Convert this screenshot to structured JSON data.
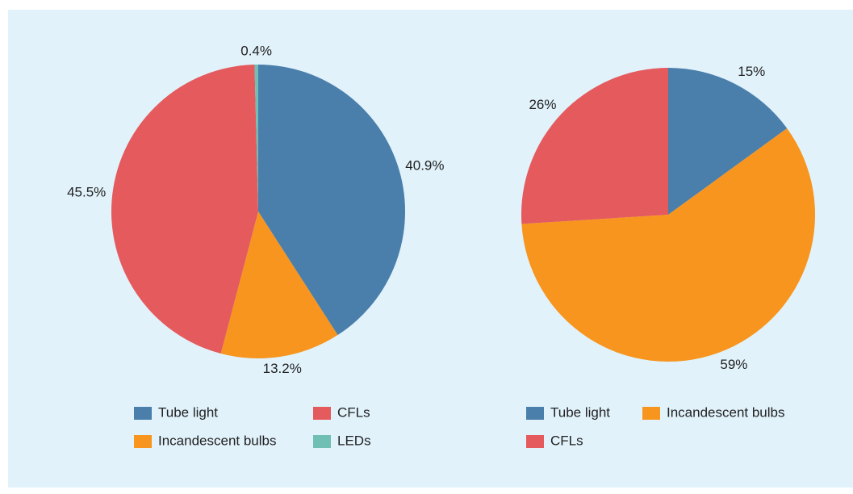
{
  "chart_data": [
    {
      "type": "pie",
      "categories": [
        "Tube light",
        "Incandescent bulbs",
        "CFLs",
        "LEDs"
      ],
      "values": [
        40.9,
        13.2,
        45.5,
        0.4
      ],
      "value_labels": [
        "40.9%",
        "13.2%",
        "45.5%",
        "0.4%"
      ],
      "colors": [
        "#4a7eab",
        "#f7951e",
        "#e45a5d",
        "#6fbfb5"
      ]
    },
    {
      "type": "pie",
      "categories": [
        "Tube light",
        "Incandescent bulbs",
        "CFLs"
      ],
      "values": [
        15,
        59,
        26
      ],
      "value_labels": [
        "15%",
        "59%",
        "26%"
      ],
      "colors": [
        "#4a7eab",
        "#f7951e",
        "#e45a5d"
      ]
    }
  ]
}
